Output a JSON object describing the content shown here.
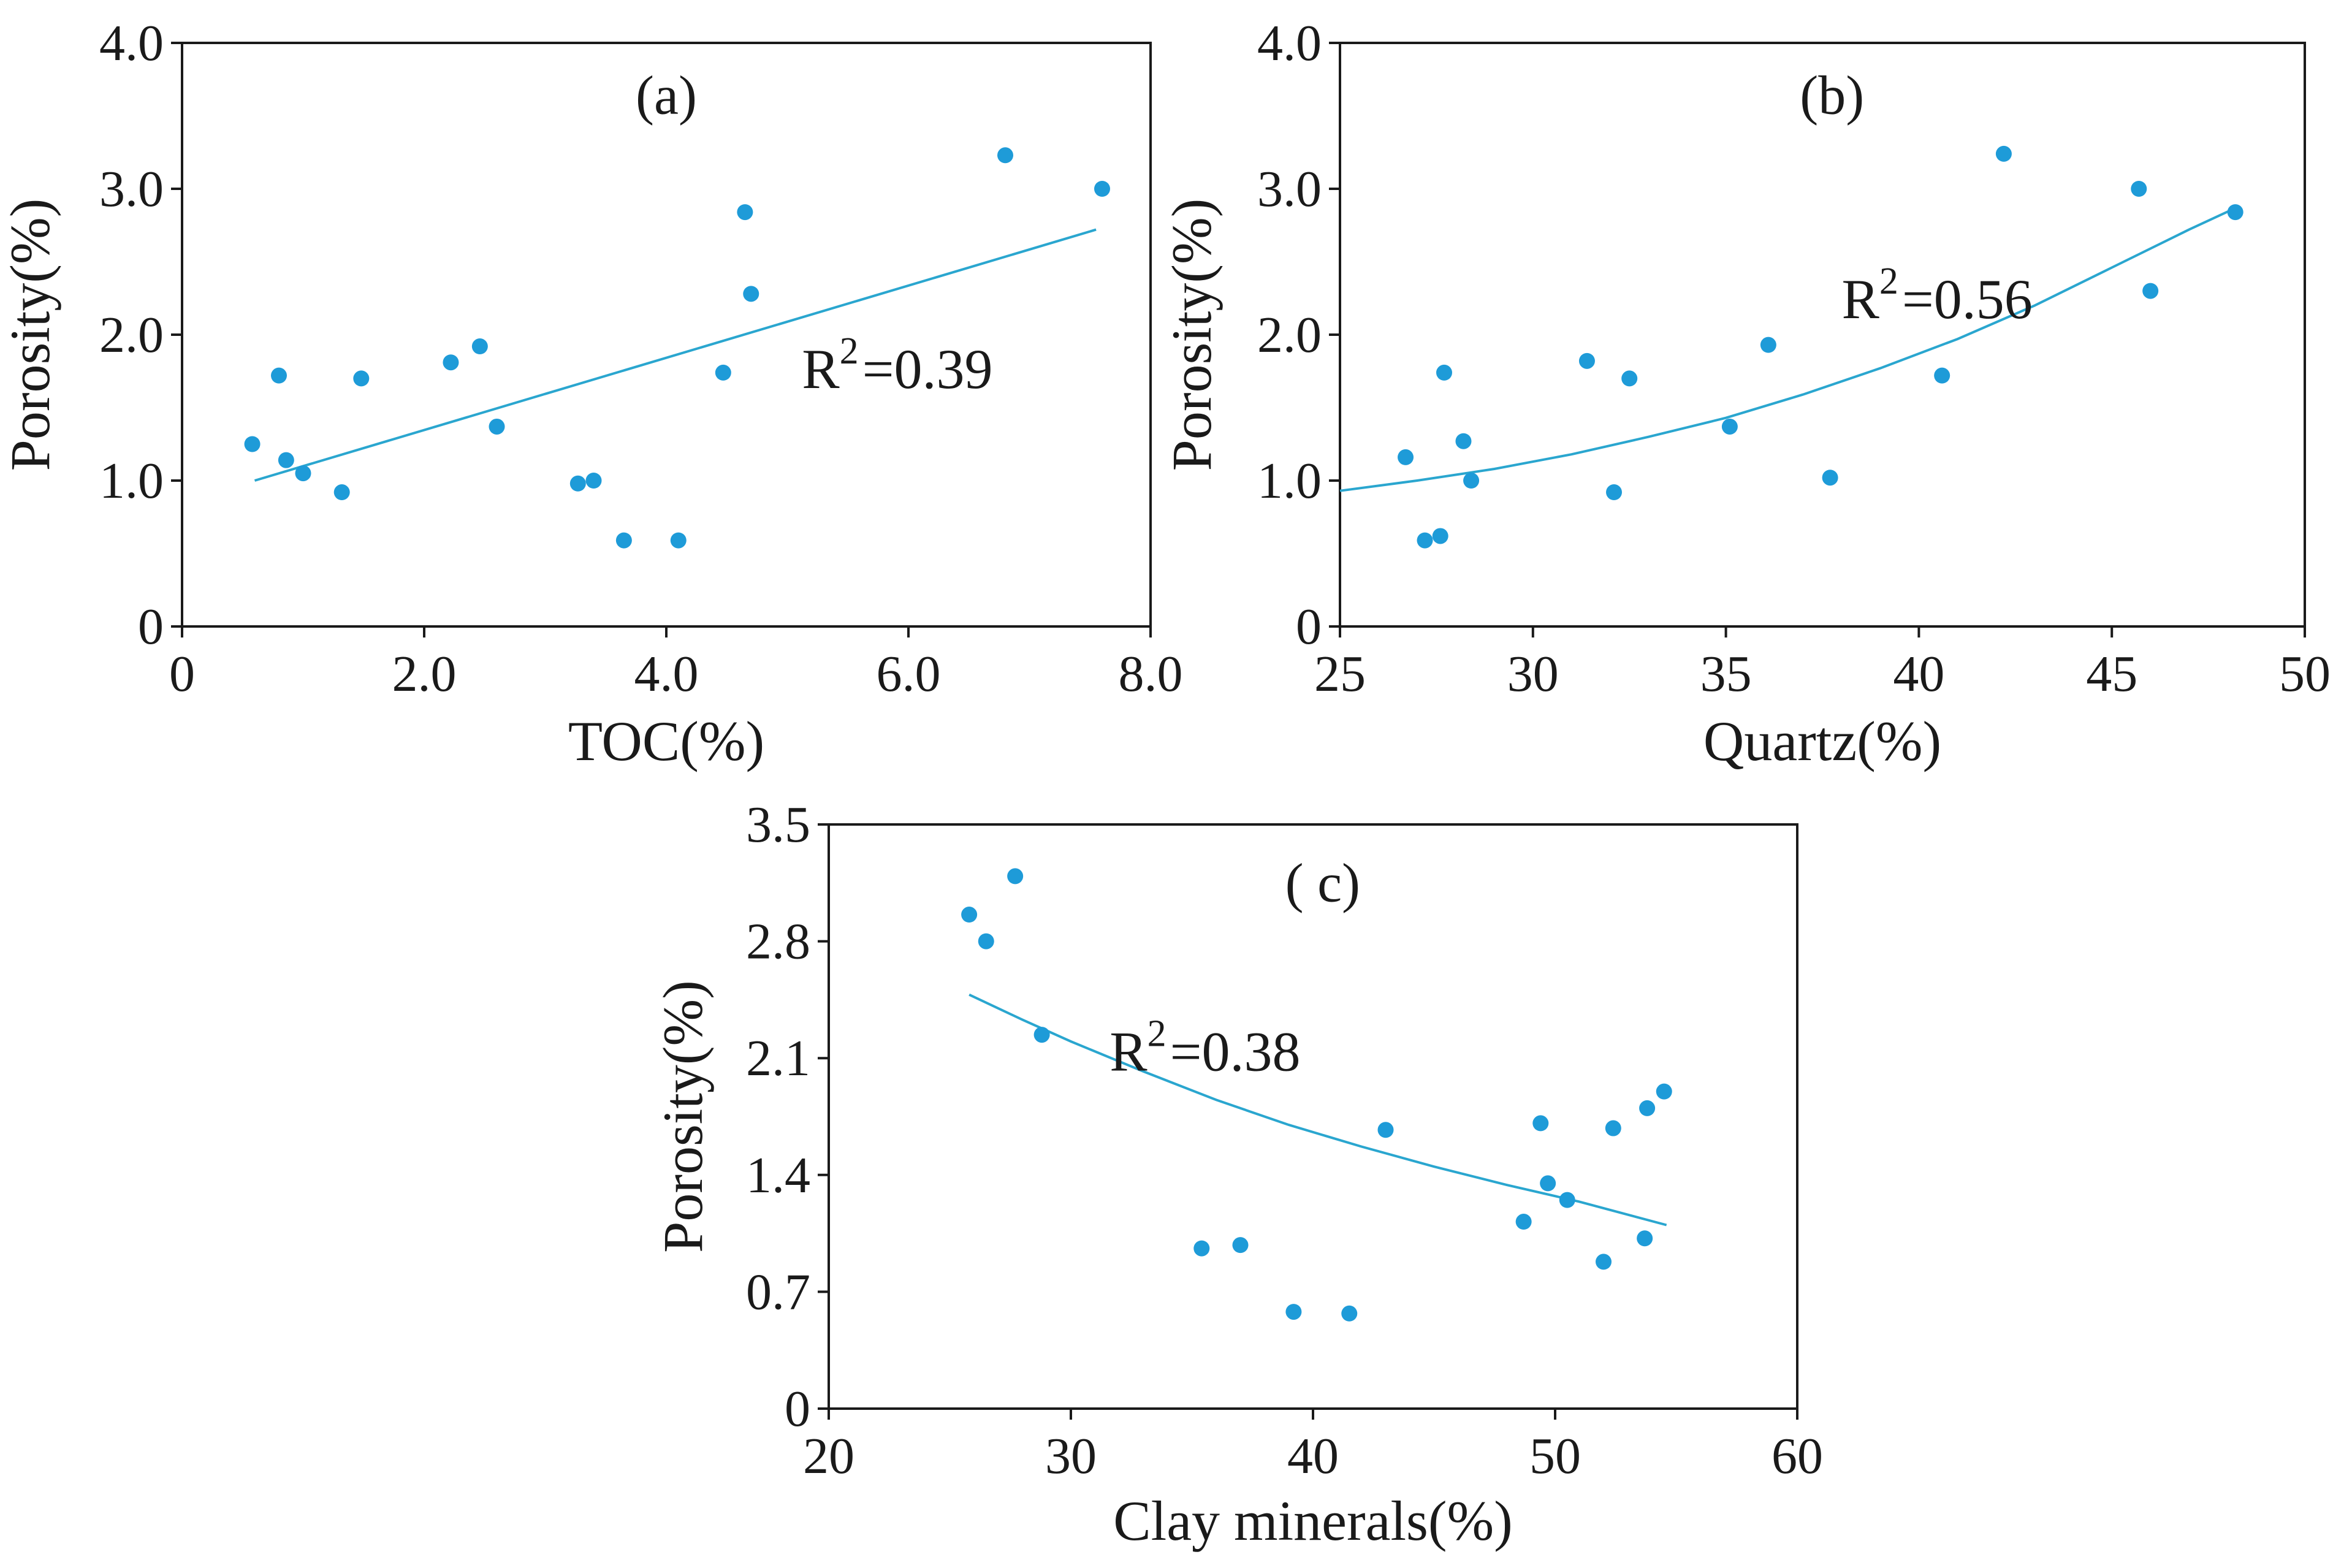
{
  "chart_data": [
    {
      "id": "a",
      "type": "scatter",
      "panel_label": "(a)",
      "xlabel": "TOC(%)",
      "ylabel": "Porosity(%)",
      "xlim": [
        0,
        8
      ],
      "ylim": [
        0,
        4
      ],
      "xticks": [
        0,
        2,
        4,
        6,
        8
      ],
      "xtick_labels": [
        "0",
        "2.0",
        "4.0",
        "6.0",
        "8.0"
      ],
      "yticks": [
        0,
        1,
        2,
        3,
        4
      ],
      "ytick_labels": [
        "0",
        "1.0",
        "2.0",
        "3.0",
        "4.0"
      ],
      "grid": false,
      "r2_prefix": "R",
      "r2_sup": "2",
      "r2_value": "=0.39",
      "fit": {
        "type": "linear",
        "x": [
          0.6,
          7.55
        ],
        "y": [
          1.0,
          2.72
        ]
      },
      "points": [
        [
          0.58,
          1.25
        ],
        [
          0.8,
          1.72
        ],
        [
          0.86,
          1.14
        ],
        [
          1.0,
          1.05
        ],
        [
          1.32,
          0.92
        ],
        [
          1.48,
          1.7
        ],
        [
          2.22,
          1.81
        ],
        [
          2.46,
          1.92
        ],
        [
          2.6,
          1.37
        ],
        [
          3.27,
          0.98
        ],
        [
          3.4,
          1.0
        ],
        [
          3.65,
          0.59
        ],
        [
          4.1,
          0.59
        ],
        [
          4.47,
          1.74
        ],
        [
          4.65,
          2.84
        ],
        [
          4.7,
          2.28
        ],
        [
          6.8,
          3.23
        ],
        [
          7.6,
          3.0
        ]
      ]
    },
    {
      "id": "b",
      "type": "scatter",
      "panel_label": "(b)",
      "xlabel": "Quartz(%)",
      "ylabel": "Porosity(%)",
      "xlim": [
        25,
        50
      ],
      "ylim": [
        0,
        4
      ],
      "xticks": [
        25,
        30,
        35,
        40,
        45,
        50
      ],
      "xtick_labels": [
        "25",
        "30",
        "35",
        "40",
        "45",
        "50"
      ],
      "yticks": [
        0,
        1,
        2,
        3,
        4
      ],
      "ytick_labels": [
        "0",
        "1.0",
        "2.0",
        "3.0",
        "4.0"
      ],
      "grid": false,
      "r2_prefix": "R",
      "r2_sup": "2",
      "r2_value": "=0.56",
      "fit": {
        "type": "exponential",
        "x": [
          25,
          27,
          29,
          31,
          33,
          35,
          37,
          39,
          41,
          43,
          45,
          47,
          48.3
        ],
        "y": [
          0.93,
          1.0,
          1.08,
          1.18,
          1.3,
          1.43,
          1.59,
          1.77,
          1.97,
          2.2,
          2.46,
          2.72,
          2.88
        ]
      },
      "points": [
        [
          26.7,
          1.16
        ],
        [
          27.2,
          0.59
        ],
        [
          27.6,
          0.62
        ],
        [
          27.7,
          1.74
        ],
        [
          28.2,
          1.27
        ],
        [
          28.4,
          1.0
        ],
        [
          31.4,
          1.82
        ],
        [
          32.1,
          0.92
        ],
        [
          32.5,
          1.7
        ],
        [
          35.1,
          1.37
        ],
        [
          36.1,
          1.93
        ],
        [
          37.7,
          1.02
        ],
        [
          40.6,
          1.72
        ],
        [
          42.2,
          3.24
        ],
        [
          45.7,
          3.0
        ],
        [
          46.0,
          2.3
        ],
        [
          48.2,
          2.84
        ]
      ]
    },
    {
      "id": "c",
      "type": "scatter",
      "panel_label": "( c)",
      "xlabel": "Clay minerals(%)",
      "ylabel": "Porosity(%)",
      "xlim": [
        20,
        60
      ],
      "ylim": [
        0,
        3.5
      ],
      "xticks": [
        20,
        30,
        40,
        50,
        60
      ],
      "xtick_labels": [
        "20",
        "30",
        "40",
        "50",
        "60"
      ],
      "yticks": [
        0,
        0.7,
        1.4,
        2.1,
        2.8,
        3.5
      ],
      "ytick_labels": [
        "0",
        "0.7",
        "1.4",
        "2.1",
        "2.8",
        "3.5"
      ],
      "grid": false,
      "r2_prefix": "R",
      "r2_sup": "2",
      "r2_value": "=0.38",
      "fit": {
        "type": "power",
        "x": [
          25.8,
          28,
          30,
          33,
          36,
          39,
          42,
          45,
          48,
          51,
          54.6
        ],
        "y": [
          2.48,
          2.33,
          2.2,
          2.02,
          1.85,
          1.7,
          1.57,
          1.45,
          1.34,
          1.24,
          1.1
        ]
      },
      "points": [
        [
          25.8,
          2.96
        ],
        [
          26.5,
          2.8
        ],
        [
          27.7,
          3.19
        ],
        [
          28.8,
          2.24
        ],
        [
          35.4,
          0.96
        ],
        [
          37.0,
          0.98
        ],
        [
          39.2,
          0.58
        ],
        [
          41.5,
          0.57
        ],
        [
          43.0,
          1.67
        ],
        [
          48.7,
          1.12
        ],
        [
          49.4,
          1.71
        ],
        [
          49.7,
          1.35
        ],
        [
          50.5,
          1.25
        ],
        [
          52.0,
          0.88
        ],
        [
          52.4,
          1.68
        ],
        [
          53.7,
          1.02
        ],
        [
          53.8,
          1.8
        ],
        [
          54.5,
          1.9
        ]
      ]
    }
  ],
  "colors": {
    "point": "#1e9bd8",
    "fit_line": "#2aa6cf",
    "axis": "#1a1a1a",
    "background": "#ffffff"
  }
}
